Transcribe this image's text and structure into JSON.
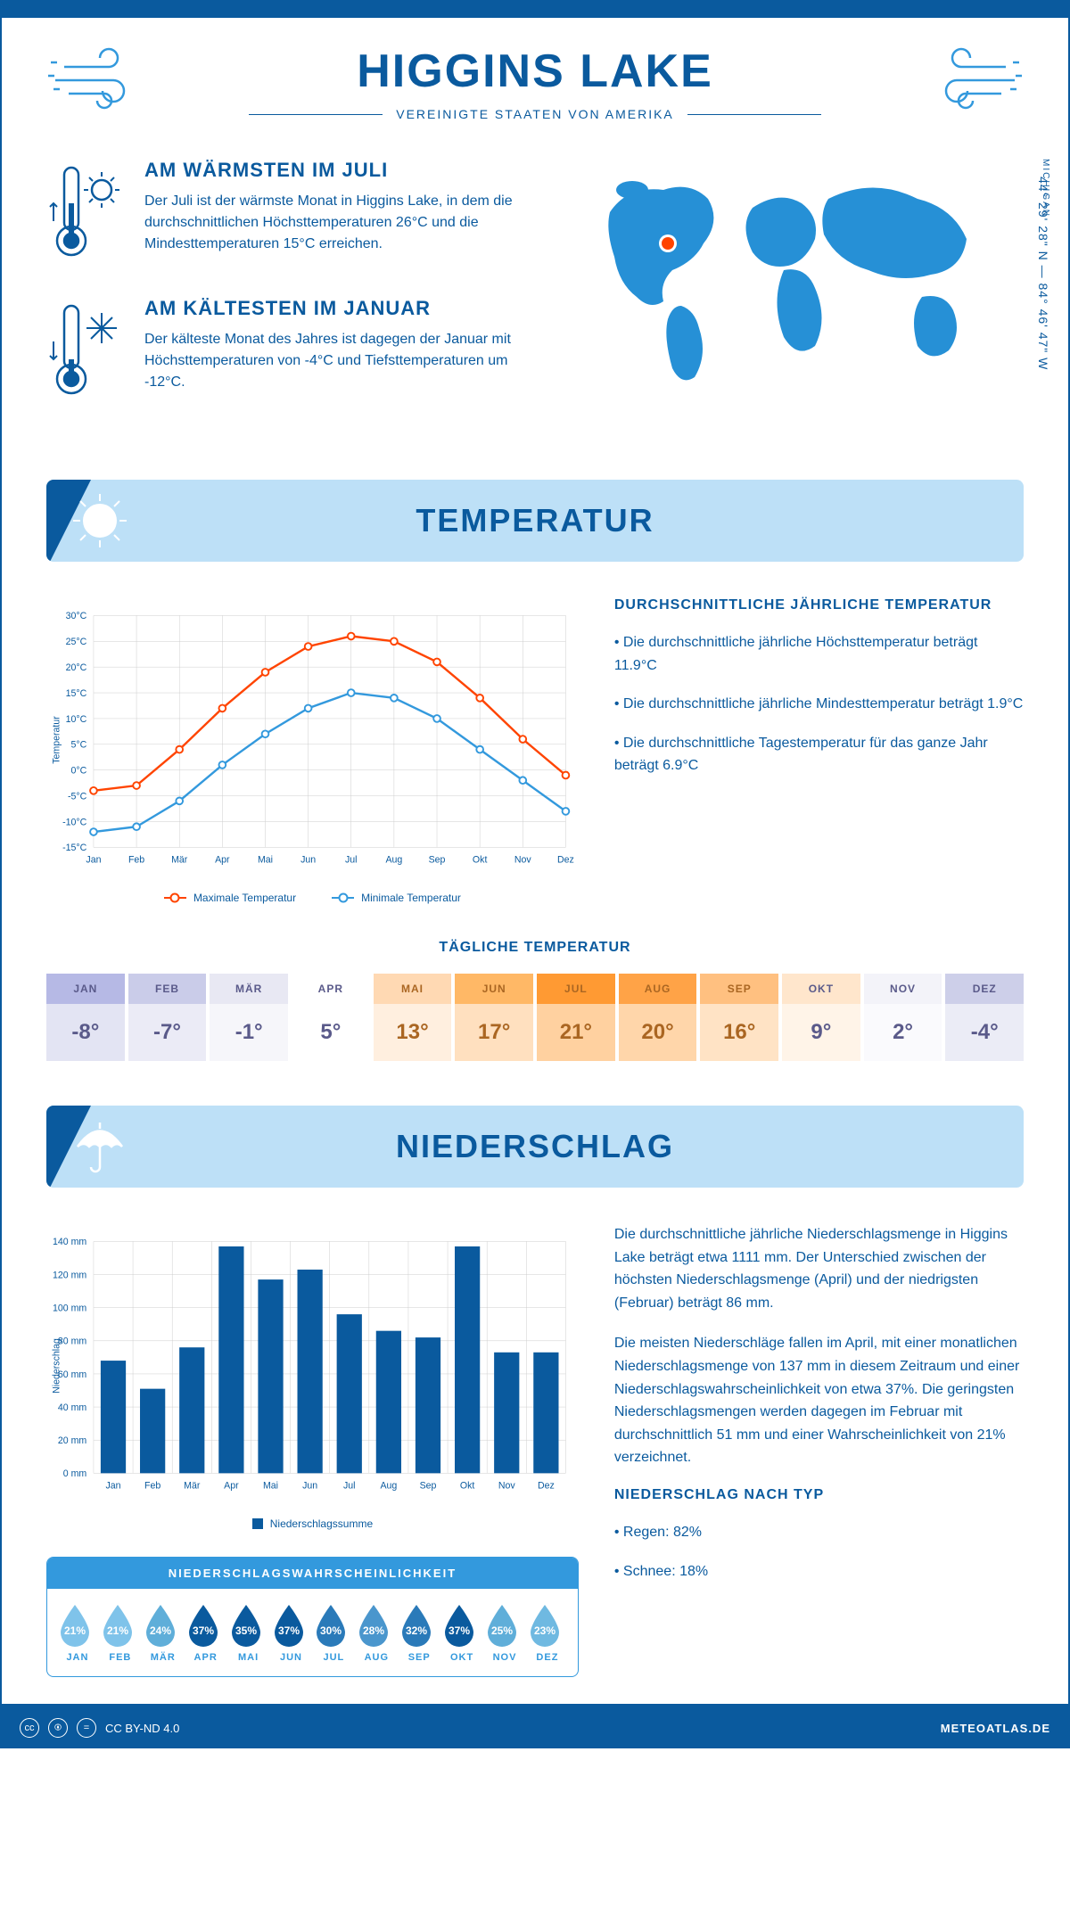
{
  "header": {
    "title": "HIGGINS LAKE",
    "subtitle": "VEREINIGTE STAATEN VON AMERIKA"
  },
  "location": {
    "state": "MICHIGAN",
    "coords": "44° 29' 28\" N — 84° 46' 47\" W",
    "marker_color": "#ff4400",
    "map_color": "#2690d6"
  },
  "facts": {
    "warmest": {
      "heading": "AM WÄRMSTEN IM JULI",
      "text": "Der Juli ist der wärmste Monat in Higgins Lake, in dem die durchschnittlichen Höchsttemperaturen 26°C und die Mindesttemperaturen 15°C erreichen."
    },
    "coldest": {
      "heading": "AM KÄLTESTEN IM JANUAR",
      "text": "Der kälteste Monat des Jahres ist dagegen der Januar mit Höchsttemperaturen von -4°C und Tiefsttemperaturen um -12°C."
    }
  },
  "sections": {
    "temperature": "TEMPERATUR",
    "precipitation": "NIEDERSCHLAG"
  },
  "temp_chart": {
    "type": "line",
    "y_label": "Temperatur",
    "months": [
      "Jan",
      "Feb",
      "Mär",
      "Apr",
      "Mai",
      "Jun",
      "Jul",
      "Aug",
      "Sep",
      "Okt",
      "Nov",
      "Dez"
    ],
    "max_series": {
      "label": "Maximale Temperatur",
      "color": "#ff4400",
      "values": [
        -4,
        -3,
        4,
        12,
        19,
        24,
        26,
        25,
        21,
        14,
        6,
        -1
      ]
    },
    "min_series": {
      "label": "Minimale Temperatur",
      "color": "#3399dd",
      "values": [
        -12,
        -11,
        -6,
        1,
        7,
        12,
        15,
        14,
        10,
        4,
        -2,
        -8
      ]
    },
    "ylim": [
      -15,
      30
    ],
    "ytick_step": 5,
    "grid_color": "#cccccc",
    "axis_color": "#0a5a9e",
    "label_fontsize": 11
  },
  "temp_info": {
    "heading": "DURCHSCHNITTLICHE JÄHRLICHE TEMPERATUR",
    "bullets": [
      "• Die durchschnittliche jährliche Höchsttemperatur beträgt 11.9°C",
      "• Die durchschnittliche jährliche Mindesttemperatur beträgt 1.9°C",
      "• Die durchschnittliche Tagestemperatur für das ganze Jahr beträgt 6.9°C"
    ]
  },
  "daily_temp": {
    "heading": "TÄGLICHE TEMPERATUR",
    "months": [
      "JAN",
      "FEB",
      "MÄR",
      "APR",
      "MAI",
      "JUN",
      "JUL",
      "AUG",
      "SEP",
      "OKT",
      "NOV",
      "DEZ"
    ],
    "values": [
      "-8°",
      "-7°",
      "-1°",
      "5°",
      "13°",
      "17°",
      "21°",
      "20°",
      "16°",
      "9°",
      "2°",
      "-4°"
    ],
    "header_colors": [
      "#b6b9e5",
      "#cacce9",
      "#e8e8f3",
      "#ffffff",
      "#ffd9b3",
      "#ffb866",
      "#ff9a33",
      "#ffa347",
      "#ffc080",
      "#ffe6cc",
      "#f3f3f9",
      "#cdcfe9"
    ],
    "body_colors": [
      "#e3e4f3",
      "#ebebf6",
      "#f6f6fa",
      "#ffffff",
      "#ffefdf",
      "#ffe0bf",
      "#ffd1a0",
      "#ffd6aa",
      "#ffe3c5",
      "#fff4e8",
      "#fafafd",
      "#ebecf6"
    ],
    "text_color": "#5a5a8a",
    "text_color_warm": "#aa6622"
  },
  "precip_chart": {
    "type": "bar",
    "y_label": "Niederschlag",
    "legend": "Niederschlagssumme",
    "months": [
      "Jan",
      "Feb",
      "Mär",
      "Apr",
      "Mai",
      "Jun",
      "Jul",
      "Aug",
      "Sep",
      "Okt",
      "Nov",
      "Dez"
    ],
    "values": [
      68,
      51,
      76,
      137,
      117,
      123,
      96,
      86,
      82,
      137,
      73,
      73
    ],
    "ylim": [
      0,
      140
    ],
    "ytick_step": 20,
    "bar_color": "#0a5a9e",
    "grid_color": "#cccccc",
    "axis_color": "#0a5a9e",
    "label_fontsize": 11
  },
  "precip_prob": {
    "heading": "NIEDERSCHLAGSWAHRSCHEINLICHKEIT",
    "months": [
      "JAN",
      "FEB",
      "MÄR",
      "APR",
      "MAI",
      "JUN",
      "JUL",
      "AUG",
      "SEP",
      "OKT",
      "NOV",
      "DEZ"
    ],
    "values": [
      "21%",
      "21%",
      "24%",
      "37%",
      "35%",
      "37%",
      "30%",
      "28%",
      "32%",
      "37%",
      "25%",
      "23%"
    ],
    "colors": [
      "#7fc3ea",
      "#7fc3ea",
      "#5faed9",
      "#0a5a9e",
      "#0a5a9e",
      "#0a5a9e",
      "#2a7ab9",
      "#4a96cd",
      "#2a7ab9",
      "#0a5a9e",
      "#5faed9",
      "#6fb9e1"
    ]
  },
  "precip_text": {
    "p1": "Die durchschnittliche jährliche Niederschlagsmenge in Higgins Lake beträgt etwa 1111 mm. Der Unterschied zwischen der höchsten Niederschlagsmenge (April) und der niedrigsten (Februar) beträgt 86 mm.",
    "p2": "Die meisten Niederschläge fallen im April, mit einer monatlichen Niederschlagsmenge von 137 mm in diesem Zeitraum und einer Niederschlagswahrscheinlichkeit von etwa 37%. Die geringsten Niederschlagsmengen werden dagegen im Februar mit durchschnittlich 51 mm und einer Wahrscheinlichkeit von 21% verzeichnet.",
    "type_heading": "NIEDERSCHLAG NACH TYP",
    "type_bullets": [
      "• Regen: 82%",
      "• Schnee: 18%"
    ]
  },
  "footer": {
    "license": "CC BY-ND 4.0",
    "brand": "METEOATLAS.DE"
  },
  "colors": {
    "primary": "#0a5a9e",
    "accent": "#3399dd",
    "section_bg": "#bde0f7"
  }
}
